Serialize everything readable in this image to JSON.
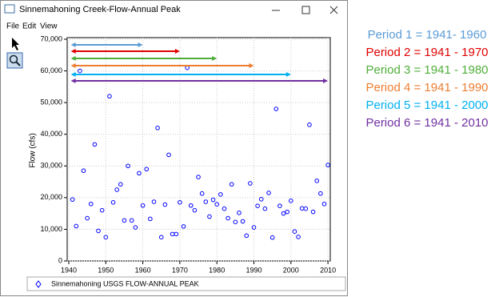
{
  "window": {
    "title": "Sinnemahoning Creek-Flow-Annual Peak",
    "menu": [
      "File",
      "Edit",
      "View"
    ]
  },
  "chart_data": {
    "type": "scatter",
    "ylabel": "Flow (cfs)",
    "x": [
      1941,
      1942,
      1943,
      1944,
      1945,
      1946,
      1947,
      1948,
      1949,
      1950,
      1951,
      1952,
      1953,
      1954,
      1955,
      1956,
      1957,
      1958,
      1959,
      1960,
      1961,
      1962,
      1963,
      1964,
      1965,
      1966,
      1967,
      1968,
      1969,
      1970,
      1971,
      1972,
      1973,
      1974,
      1975,
      1976,
      1977,
      1978,
      1979,
      1980,
      1981,
      1982,
      1983,
      1984,
      1985,
      1986,
      1987,
      1988,
      1989,
      1990,
      1991,
      1992,
      1993,
      1994,
      1995,
      1996,
      1997,
      1998,
      1999,
      2000,
      2001,
      2002,
      2003,
      2004,
      2005,
      2006,
      2007,
      2008,
      2009,
      2010
    ],
    "series": [
      {
        "name": "Sinnemahoning USGS FLOW-ANNUAL PEAK",
        "color": "#0000ff",
        "values": [
          19400,
          11000,
          60000,
          28500,
          13500,
          18000,
          36800,
          9500,
          16000,
          7500,
          52000,
          18500,
          22500,
          24200,
          12800,
          30000,
          12800,
          10600,
          27700,
          17500,
          29000,
          13300,
          18700,
          42000,
          7500,
          17800,
          33500,
          8500,
          8500,
          18500,
          10900,
          61000,
          17500,
          16000,
          26500,
          21300,
          18700,
          14000,
          19300,
          17900,
          21000,
          16500,
          13500,
          24200,
          12300,
          15200,
          12500,
          8000,
          24500,
          10600,
          17400,
          19500,
          16500,
          21500,
          7400,
          48000,
          17400,
          15000,
          15500,
          19000,
          9300,
          7600,
          16600,
          16500,
          43000,
          15500,
          25300,
          21300,
          18000,
          30300
        ]
      }
    ],
    "xlim": [
      1940,
      2011
    ],
    "ylim": [
      0,
      70000
    ],
    "xticks": [
      1940,
      1950,
      1960,
      1970,
      1980,
      1990,
      2000,
      2010
    ],
    "yticks": [
      0,
      {
        "value": 10000,
        "label": "10,000"
      },
      {
        "value": 20000,
        "label": "20,000"
      },
      {
        "value": 30000,
        "label": "30,000"
      },
      {
        "value": 40000,
        "label": "40,000"
      },
      {
        "value": 50000,
        "label": "50,000"
      },
      {
        "value": 60000,
        "label": "60,000"
      },
      {
        "value": 70000,
        "label": "70,000"
      }
    ],
    "grid": true,
    "periods": [
      {
        "label": "Period 1 = 1941- 1960",
        "start": 1941,
        "end": 1960,
        "color": "#5b9bd5"
      },
      {
        "label": "Period 2 = 1941 - 1970",
        "start": 1941,
        "end": 1970,
        "color": "#e00000"
      },
      {
        "label": "Period 3 = 1941 - 1980",
        "start": 1941,
        "end": 1980,
        "color": "#4fae3a"
      },
      {
        "label": "Period 4 = 1941 - 1990",
        "start": 1941,
        "end": 1990,
        "color": "#ed7d31"
      },
      {
        "label": "Period 5 = 1941 - 2000",
        "start": 1941,
        "end": 2000,
        "color": "#00b0f0"
      },
      {
        "label": "Period 6 = 1941 - 2010",
        "start": 1941,
        "end": 2010,
        "color": "#7030a0"
      }
    ]
  }
}
